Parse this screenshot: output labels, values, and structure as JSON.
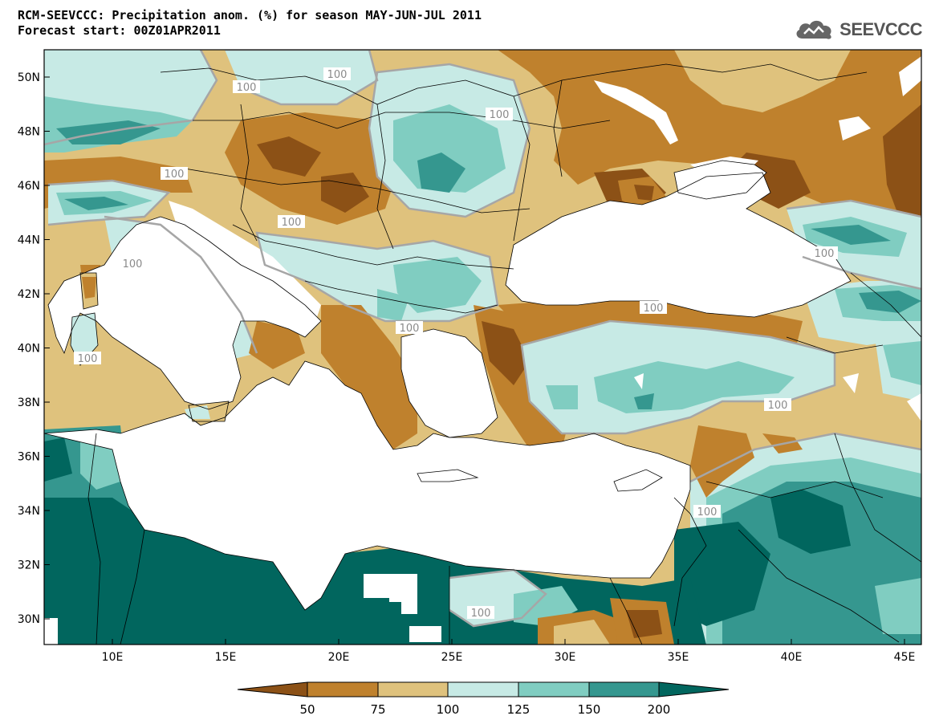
{
  "header": {
    "title_line1": "RCM-SEEVCCC: Precipitation anom. (%) for season MAY-JUN-JUL 2011",
    "title_line2": "Forecast start: 00Z01APR2011",
    "logo_text": "SEEVCCC"
  },
  "map": {
    "lat_ticks": [
      "50N",
      "48N",
      "46N",
      "44N",
      "42N",
      "40N",
      "38N",
      "36N",
      "34N",
      "32N",
      "30N"
    ],
    "lon_ticks": [
      "10E",
      "15E",
      "20E",
      "25E",
      "30E",
      "35E",
      "40E",
      "45E"
    ],
    "contour_label": "100",
    "colors": {
      "lt50": "#8c5116",
      "c50_75": "#bf812d",
      "c75_100": "#dfc27d",
      "c100_125": "#c7eae5",
      "c125_150": "#80cdc1",
      "c150_200": "#35978f",
      "gt200": "#01665e",
      "sea": "#ffffff",
      "contour": "#a0a0a0"
    }
  },
  "colorbar": {
    "labels": [
      "50",
      "75",
      "100",
      "125",
      "150",
      "200"
    ]
  }
}
